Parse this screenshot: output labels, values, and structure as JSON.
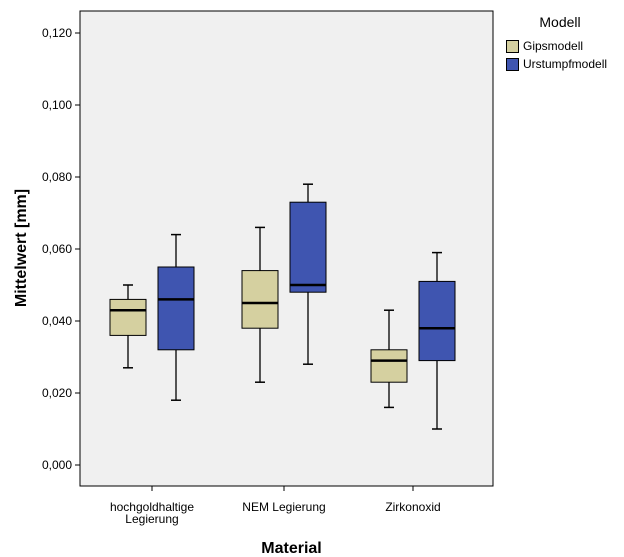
{
  "chart_data": {
    "type": "boxplot",
    "xlabel": "Material",
    "ylabel": "Mittelwert [mm]",
    "ylim": [
      0,
      0.125
    ],
    "yticks": [
      0.0,
      0.02,
      0.04,
      0.06,
      0.08,
      0.1,
      0.12
    ],
    "ytick_labels": [
      "0,000",
      "0,020",
      "0,040",
      "0,060",
      "0,080",
      "0,100",
      "0,120"
    ],
    "categories": [
      [
        "hochgoldhaltige",
        "Legierung"
      ],
      [
        "NEM Legierung"
      ],
      [
        "Zirkonoxid"
      ]
    ],
    "legend": {
      "title": "Modell",
      "position": "right"
    },
    "grid": false,
    "series": [
      {
        "name": "Gipsmodell",
        "color": "#d5d0a0",
        "boxes": [
          {
            "min": 0.027,
            "q1": 0.036,
            "median": 0.043,
            "q3": 0.046,
            "max": 0.05
          },
          {
            "min": 0.023,
            "q1": 0.038,
            "median": 0.045,
            "q3": 0.054,
            "max": 0.066
          },
          {
            "min": 0.016,
            "q1": 0.023,
            "median": 0.029,
            "q3": 0.032,
            "max": 0.043
          }
        ]
      },
      {
        "name": "Urstumpfmodell",
        "color": "#3f55b0",
        "boxes": [
          {
            "min": 0.018,
            "q1": 0.032,
            "median": 0.046,
            "q3": 0.055,
            "max": 0.064
          },
          {
            "min": 0.028,
            "q1": 0.048,
            "median": 0.05,
            "q3": 0.073,
            "max": 0.078
          },
          {
            "min": 0.01,
            "q1": 0.029,
            "median": 0.038,
            "q3": 0.051,
            "max": 0.059
          }
        ]
      }
    ]
  }
}
